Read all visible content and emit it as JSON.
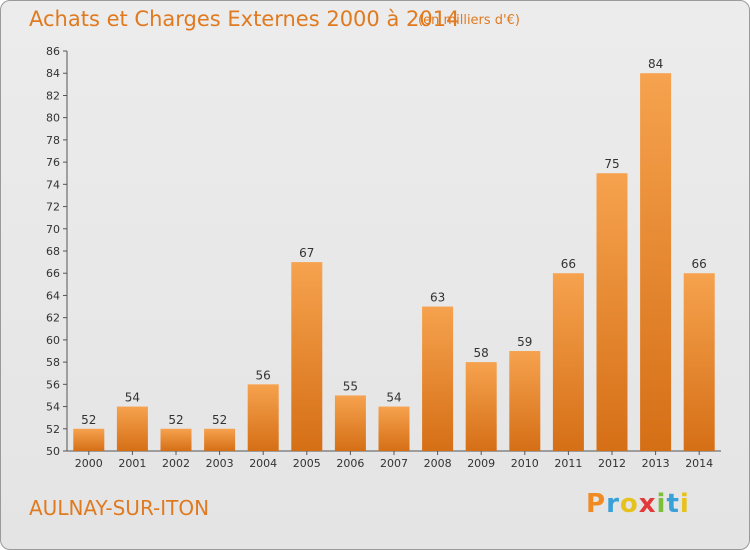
{
  "header": {
    "title": "Achats et Charges Externes 2000 à 2014",
    "subtitle": "(en milliers d'€)"
  },
  "footer": {
    "town": "AULNAY-SUR-ITON",
    "brand": "Proxiti",
    "brand_colors": [
      "#f08a24",
      "#3aa0d8",
      "#e8c21c",
      "#e23a3a",
      "#7bbf3a",
      "#3aa0d8",
      "#e8c21c"
    ]
  },
  "chart_data": {
    "type": "bar",
    "title": "Achats et Charges Externes 2000 à 2014",
    "categories": [
      "2000",
      "2001",
      "2002",
      "2003",
      "2004",
      "2005",
      "2006",
      "2007",
      "2008",
      "2009",
      "2010",
      "2011",
      "2012",
      "2013",
      "2014"
    ],
    "values": [
      52,
      54,
      52,
      52,
      56,
      67,
      55,
      54,
      63,
      58,
      59,
      66,
      75,
      84,
      66
    ],
    "ylim": [
      50,
      86
    ],
    "yticks": [
      50,
      52,
      54,
      56,
      58,
      60,
      62,
      64,
      66,
      68,
      70,
      72,
      74,
      76,
      78,
      80,
      82,
      84,
      86
    ],
    "grid": false,
    "bar_color": "#f0902a"
  }
}
